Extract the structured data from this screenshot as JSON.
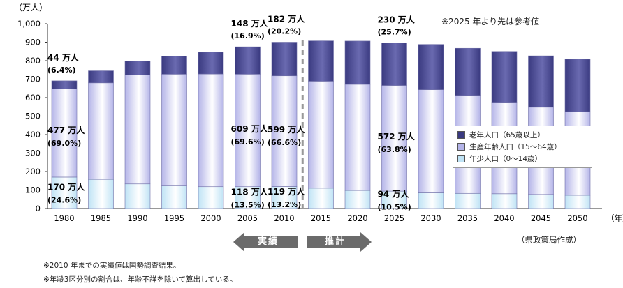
{
  "chart_data": {
    "type": "bar",
    "stacked": true,
    "unit_label": "（万人）",
    "x_unit_label": "（年）",
    "categories": [
      "1980",
      "1985",
      "1990",
      "1995",
      "2000",
      "2005",
      "2010",
      "2015",
      "2020",
      "2025",
      "2030",
      "2035",
      "2040",
      "2045",
      "2050"
    ],
    "series": [
      {
        "name": "年少人口（0～14歳）",
        "color": "#bfe3f5",
        "values": [
          170,
          158,
          133,
          122,
          118,
          118,
          119,
          110,
          98,
          94,
          85,
          82,
          80,
          76,
          72
        ]
      },
      {
        "name": "生産年齢人口（15～64歳）",
        "color": "#b4b4e8",
        "values": [
          477,
          522,
          590,
          605,
          610,
          609,
          599,
          579,
          574,
          572,
          558,
          530,
          495,
          472,
          452
        ]
      },
      {
        "name": "老年人口（65歳以上）",
        "color": "#3a3a80",
        "values": [
          44,
          65,
          75,
          98,
          118,
          148,
          182,
          218,
          234,
          230,
          245,
          255,
          275,
          278,
          284
        ]
      }
    ],
    "ylim": [
      0,
      1000
    ],
    "yticks": [
      0,
      100,
      200,
      300,
      400,
      500,
      600,
      700,
      800,
      900,
      1000
    ],
    "ytick_labels": [
      "0",
      "100",
      "200",
      "300",
      "400",
      "500",
      "600",
      "700",
      "800",
      "900",
      "1,000"
    ],
    "actual_projection_divider_between": [
      "2010",
      "2015"
    ],
    "data_labels": [
      {
        "category": "1980",
        "series": 2,
        "text": "44 万人",
        "sub": "(6.4%)"
      },
      {
        "category": "1980",
        "series": 1,
        "text": "477 万人",
        "sub": "(69.0%)"
      },
      {
        "category": "1980",
        "series": 0,
        "text": "170 万人",
        "sub": "(24.6%)"
      },
      {
        "category": "2005",
        "series": 2,
        "text": "148 万人",
        "sub": "(16.9%)"
      },
      {
        "category": "2005",
        "series": 1,
        "text": "609 万人",
        "sub": "(69.6%)"
      },
      {
        "category": "2005",
        "series": 0,
        "text": "118 万人",
        "sub": "(13.5%)"
      },
      {
        "category": "2010",
        "series": 2,
        "text": "182 万人",
        "sub": "(20.2%)"
      },
      {
        "category": "2010",
        "series": 1,
        "text": "599 万人",
        "sub": "(66.6%)"
      },
      {
        "category": "2010",
        "series": 0,
        "text": "119 万人",
        "sub": "(13.2%)"
      },
      {
        "category": "2025",
        "series": 2,
        "text": "230 万人",
        "sub": "(25.7%)"
      },
      {
        "category": "2025",
        "series": 1,
        "text": "572 万人",
        "sub": "(63.8%)"
      },
      {
        "category": "2025",
        "series": 0,
        "text": "94 万人",
        "sub": "(10.5%)"
      }
    ],
    "legend_placement": "right-middle"
  },
  "legend_items": [
    {
      "label": "老年人口（65歳以上）",
      "color": "#3a3a80"
    },
    {
      "label": "生産年齢人口（15～64歳）",
      "color": "#b4b4e8"
    },
    {
      "label": "年少人口（0～14歳）",
      "color": "#bfe3f5"
    }
  ],
  "note": "※2025 年より先は参考値",
  "source": "（県政策局作成）",
  "arrows": {
    "actual": "実績",
    "projection": "推計",
    "color": "#6b6b6b"
  },
  "footnotes": [
    "※2010 年までの実績値は国勢調査結果。",
    "※年齢3区分別の割合は、年齢不詳を除いて算出している。"
  ]
}
